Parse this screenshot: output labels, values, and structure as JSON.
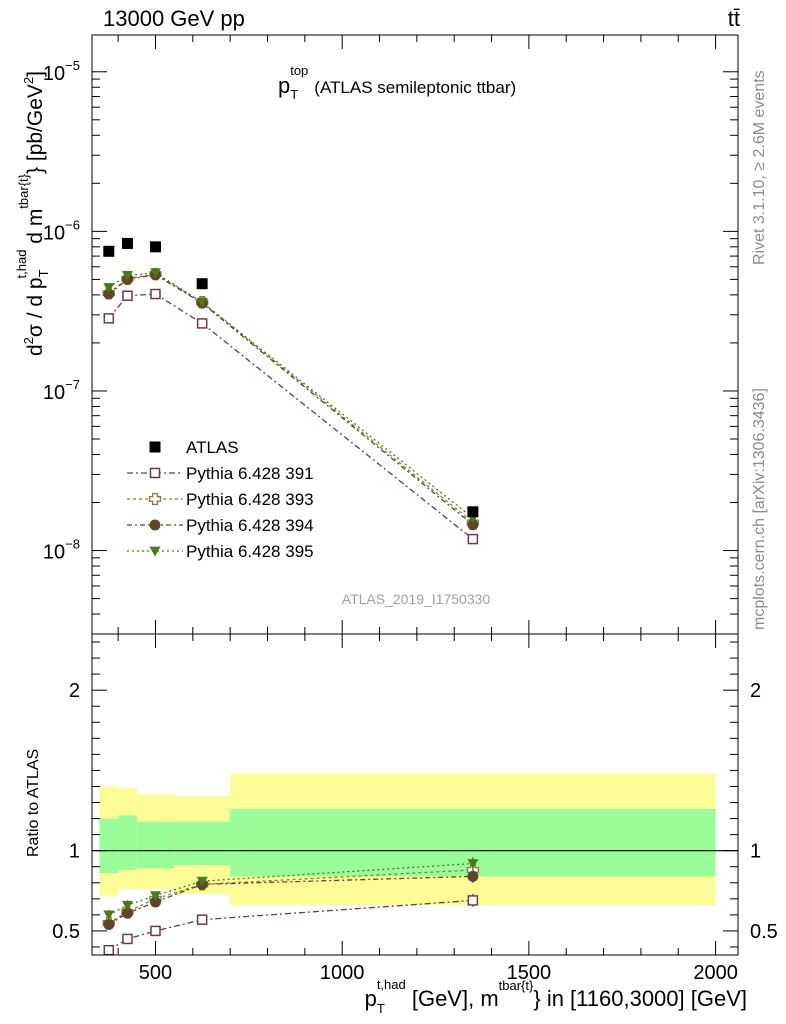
{
  "header": {
    "left": "13000 GeV pp",
    "right": "tt̄"
  },
  "side_labels": {
    "rivet": "Rivet 3.1.10, ≥ 2.6M events",
    "mcplots": "mcplots.cern.ch [arXiv:1306.3436]"
  },
  "chart_data": {
    "type": "scatter",
    "title_main": "p",
    "title_sub": "T",
    "title_sup": "top",
    "title_rest": "(ATLAS semileptonic ttbar)",
    "analysis_id": "ATLAS_2019_I1750330",
    "ylabel": {
      "prefix": "d",
      "prefix_sup": "2",
      "sigma": "σ / d p",
      "p_sub": "T",
      "p_sup": "t,had",
      "dm": " d m",
      "m_sup": "tbar{t}",
      "unit": "} [pb/GeV",
      "unit_sup": "2",
      "unit_end": "]"
    },
    "xlabel": {
      "p": "p",
      "p_sub": "T",
      "p_sup": "t,had",
      "mid": " [GeV], m",
      "m_sup": "tbar{t}",
      "rest": "} in [1160,3000] [GeV]"
    },
    "ratio_ylabel": "Ratio to ATLAS",
    "xlim": [
      330,
      2060
    ],
    "ylim_main": [
      3e-09,
      1.7e-05
    ],
    "ylim_ratio": [
      0.35,
      2.35
    ],
    "y_log": true,
    "x_ticks": [
      500,
      1000,
      1500,
      2000
    ],
    "main_y_ticks": [
      {
        "value": 1e-08,
        "base": "10",
        "exp": "−8"
      },
      {
        "value": 1e-07,
        "base": "10",
        "exp": "−7"
      },
      {
        "value": 1e-06,
        "base": "10",
        "exp": "−6"
      },
      {
        "value": 1e-05,
        "base": "10",
        "exp": "−5"
      }
    ],
    "ratio_y_ticks": [
      0.5,
      1,
      2
    ],
    "bins": [
      [
        350,
        400
      ],
      [
        400,
        450
      ],
      [
        450,
        550
      ],
      [
        550,
        700
      ],
      [
        700,
        2000
      ]
    ],
    "x": [
      375,
      425,
      500,
      625,
      1350
    ],
    "data": {
      "name": "ATLAS",
      "values": [
        7.5e-07,
        8.4e-07,
        8e-07,
        4.7e-07,
        1.75e-08
      ],
      "band_total": [
        [
          0.72,
          1.4
        ],
        [
          0.76,
          1.39
        ],
        [
          0.76,
          1.35
        ],
        [
          0.73,
          1.34
        ],
        [
          0.66,
          1.48
        ]
      ],
      "band_stat": [
        [
          0.86,
          1.2
        ],
        [
          0.88,
          1.22
        ],
        [
          0.89,
          1.18
        ],
        [
          0.91,
          1.18
        ],
        [
          0.84,
          1.26
        ]
      ]
    },
    "series": [
      {
        "name": "Pythia 6.428 391",
        "color": "#6b3a4c",
        "marker": "open-square",
        "dash": "6,3,2,3",
        "values": [
          2.85e-07,
          3.95e-07,
          4.05e-07,
          2.65e-07,
          1.18e-08
        ],
        "ratio": [
          0.38,
          0.45,
          0.5,
          0.57,
          0.69
        ],
        "ratio_err": [
          0.03,
          0.03,
          0.02,
          0.02,
          0.04
        ]
      },
      {
        "name": "Pythia 6.428 393",
        "color": "#8a7a44",
        "marker": "open-cross",
        "dash": "3,3",
        "values": [
          4.1e-07,
          5.05e-07,
          5.4e-07,
          3.6e-07,
          1.5e-08
        ],
        "ratio": [
          0.55,
          0.62,
          0.7,
          0.79,
          0.88
        ],
        "ratio_err": [
          0.03,
          0.03,
          0.02,
          0.02,
          0.04
        ]
      },
      {
        "name": "Pythia 6.428 394",
        "color": "#5e4626",
        "marker": "filled-circle",
        "dash": "5,3,2,3",
        "values": [
          4.05e-07,
          5e-07,
          5.35e-07,
          3.55e-07,
          1.45e-08
        ],
        "ratio": [
          0.54,
          0.61,
          0.68,
          0.79,
          0.84
        ],
        "ratio_err": [
          0.03,
          0.03,
          0.02,
          0.02,
          0.04
        ]
      },
      {
        "name": "Pythia 6.428 395",
        "color": "#4a7a1a",
        "marker": "filled-triangle-down",
        "dash": "2,3",
        "values": [
          4.45e-07,
          5.3e-07,
          5.5e-07,
          3.6e-07,
          1.6e-08
        ],
        "ratio": [
          0.6,
          0.66,
          0.72,
          0.81,
          0.92
        ],
        "ratio_err": [
          0.03,
          0.03,
          0.02,
          0.02,
          0.04
        ]
      }
    ],
    "colors": {
      "band_total": "#fdfd97",
      "band_stat": "#9bfd99"
    }
  }
}
